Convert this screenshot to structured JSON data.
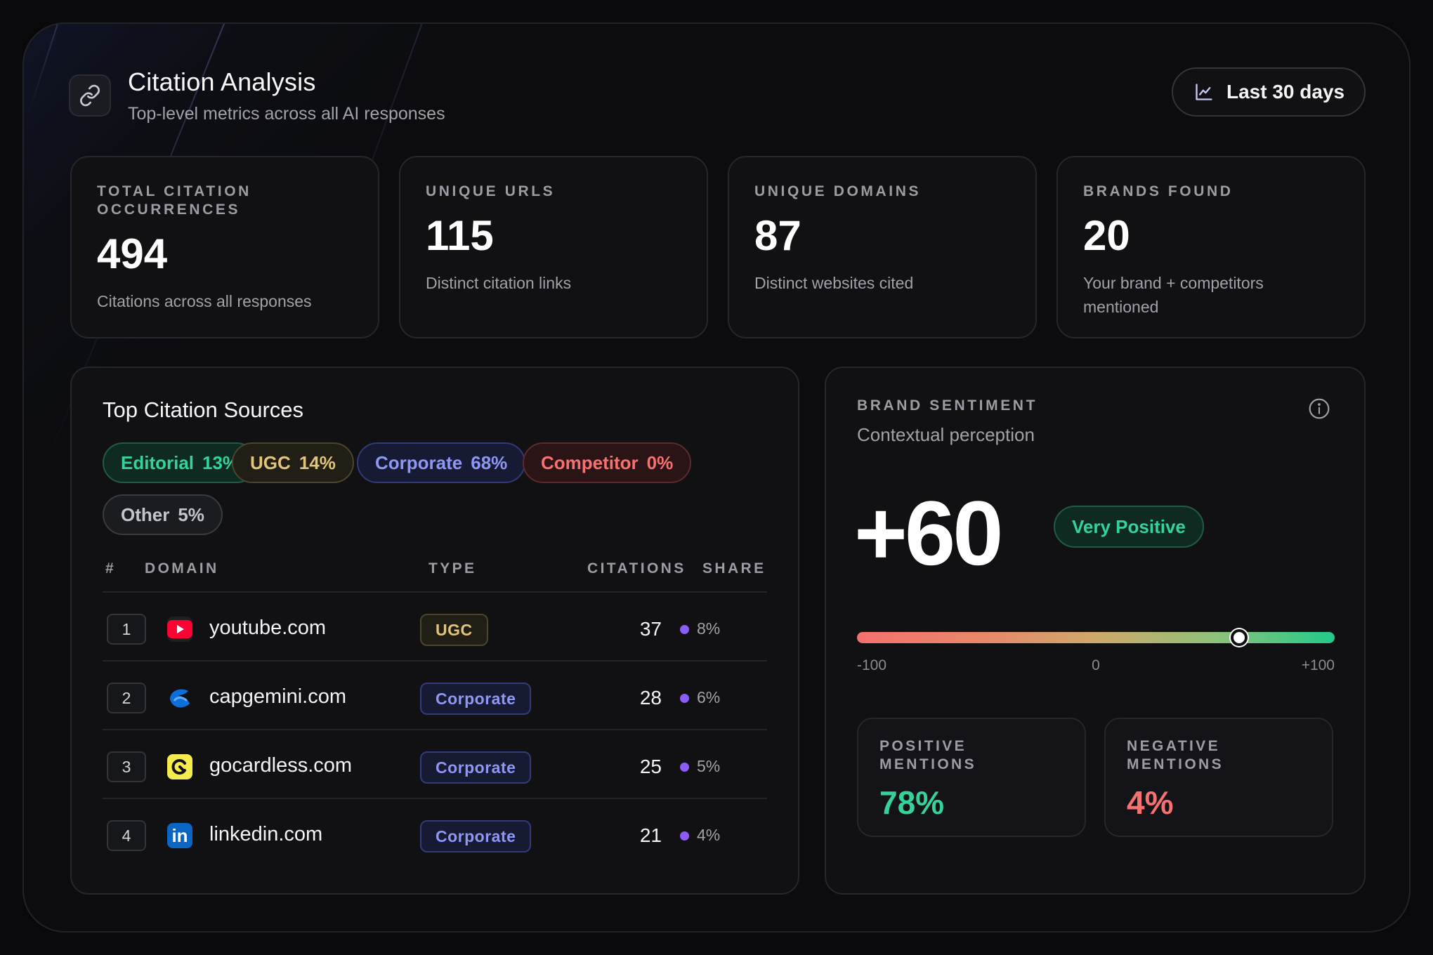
{
  "header": {
    "title": "Citation Analysis",
    "subtitle": "Top-level metrics across all AI responses",
    "range_label": "Last 30 days"
  },
  "stats": [
    {
      "label": "TOTAL CITATION OCCURRENCES",
      "value": "494",
      "desc": "Citations across all responses"
    },
    {
      "label": "UNIQUE URLS",
      "value": "115",
      "desc": "Distinct citation links"
    },
    {
      "label": "UNIQUE DOMAINS",
      "value": "87",
      "desc": "Distinct websites cited"
    },
    {
      "label": "BRANDS FOUND",
      "value": "20",
      "desc": "Your brand + competitors mentioned"
    }
  ],
  "sources": {
    "title": "Top Citation Sources",
    "chips": [
      {
        "name": "Editorial",
        "pct": "13%",
        "color": "#34d399"
      },
      {
        "name": "UGC",
        "pct": "14%",
        "color": "#e2c57a"
      },
      {
        "name": "Corporate",
        "pct": "68%",
        "color": "#8f97f5"
      },
      {
        "name": "Competitor",
        "pct": "0%",
        "color": "#f87171"
      },
      {
        "name": "Other",
        "pct": "5%",
        "color": "#c4c4cc"
      }
    ],
    "columns": {
      "rank": "#",
      "domain": "DOMAIN",
      "type": "TYPE",
      "citations": "CITATIONS",
      "share": "SHARE"
    },
    "rows": [
      {
        "rank": "1",
        "domain": "youtube.com",
        "type": "UGC",
        "citations": "37",
        "share": "8%",
        "icon": "youtube-icon"
      },
      {
        "rank": "2",
        "domain": "capgemini.com",
        "type": "Corporate",
        "citations": "28",
        "share": "6%",
        "icon": "capgemini-icon"
      },
      {
        "rank": "3",
        "domain": "gocardless.com",
        "type": "Corporate",
        "citations": "25",
        "share": "5%",
        "icon": "gocardless-icon"
      },
      {
        "rank": "4",
        "domain": "linkedin.com",
        "type": "Corporate",
        "citations": "21",
        "share": "4%",
        "icon": "linkedin-icon"
      }
    ]
  },
  "sentiment": {
    "label": "BRAND SENTIMENT",
    "subtitle": "Contextual perception",
    "score": "+60",
    "score_value": 60,
    "badge": "Very Positive",
    "scale_min_label": "-100",
    "scale_mid_label": "0",
    "scale_max_label": "+100",
    "positive_label": "POSITIVE MENTIONS",
    "positive_value": "78%",
    "negative_label": "NEGATIVE MENTIONS",
    "negative_value": "4%",
    "positive_color": "#34d399",
    "negative_color": "#f87171"
  }
}
